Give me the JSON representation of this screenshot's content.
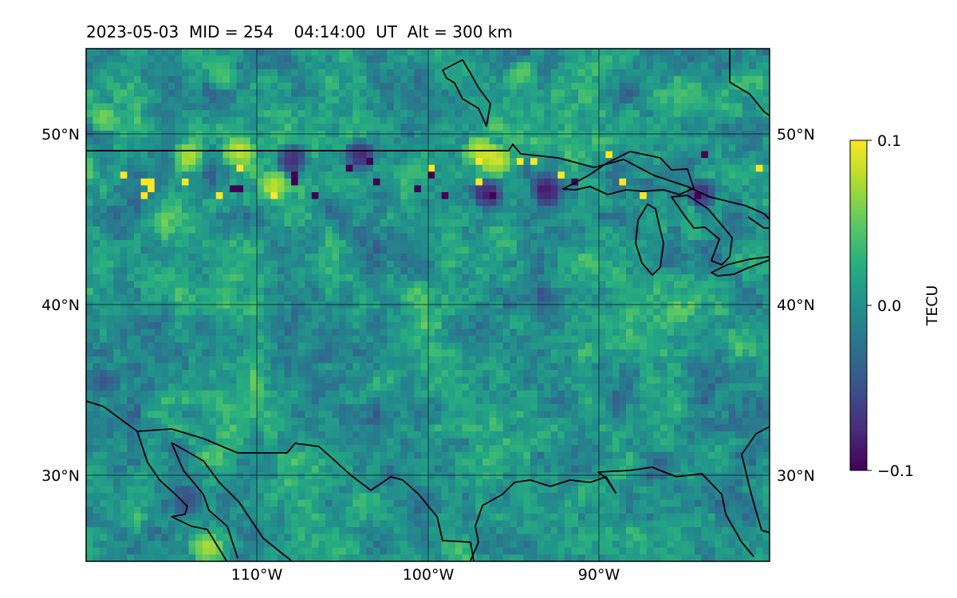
{
  "title": "2023-05-03  MID = 254    04:14:00  UT  Alt = 300 km",
  "map": {
    "projection": "PlateCarree",
    "extent_lon": [
      -120,
      -80
    ],
    "extent_lat": [
      25,
      55
    ],
    "lat_gridlines": [
      30,
      40,
      50
    ],
    "lon_gridlines": [
      -110,
      -100,
      -90
    ],
    "lat_tick_labels": [
      "30°N",
      "40°N",
      "50°N"
    ],
    "lon_tick_labels": [
      "110°W",
      "100°W",
      "90°W"
    ],
    "grid": true,
    "coastlines": true,
    "borders": true
  },
  "colorbar": {
    "label": "TECU",
    "colormap": "viridis",
    "vmin": -0.1,
    "vmax": 0.1,
    "tick_labels": [
      "0.1",
      "0.0",
      "−0.1"
    ],
    "ticks": [
      0.1,
      0.0,
      -0.1
    ]
  },
  "chart_data": {
    "type": "heatmap",
    "title": "2023-05-03  MID = 254    04:14:00  UT  Alt = 300 km",
    "quantity": "TECU",
    "value_range": [
      -0.1,
      0.1
    ],
    "xlim": [
      -120,
      -80
    ],
    "ylim": [
      25,
      55
    ],
    "hotspots": [
      {
        "lon": -104,
        "lat": 48.8,
        "value": -0.1
      },
      {
        "lon": -108,
        "lat": 48.5,
        "value": -0.1
      },
      {
        "lon": -111,
        "lat": 48.9,
        "value": 0.1
      },
      {
        "lon": -114,
        "lat": 48.7,
        "value": 0.1
      },
      {
        "lon": -109,
        "lat": 46.9,
        "value": 0.1
      },
      {
        "lon": -96,
        "lat": 48.4,
        "value": 0.1
      },
      {
        "lon": -97,
        "lat": 49.0,
        "value": 0.1
      },
      {
        "lon": -96.5,
        "lat": 46.5,
        "value": -0.1
      },
      {
        "lon": -93,
        "lat": 46.7,
        "value": -0.1
      },
      {
        "lon": -84,
        "lat": 46.5,
        "value": -0.1
      },
      {
        "lon": -112,
        "lat": 53.5,
        "value": 0.05
      },
      {
        "lon": -119,
        "lat": 51,
        "value": 0.07
      },
      {
        "lon": -94.5,
        "lat": 53.5,
        "value": 0.06
      },
      {
        "lon": -114,
        "lat": 28.5,
        "value": -0.06
      },
      {
        "lon": -119,
        "lat": 35.5,
        "value": -0.05
      },
      {
        "lon": -113,
        "lat": 25.8,
        "value": 0.08
      }
    ]
  }
}
